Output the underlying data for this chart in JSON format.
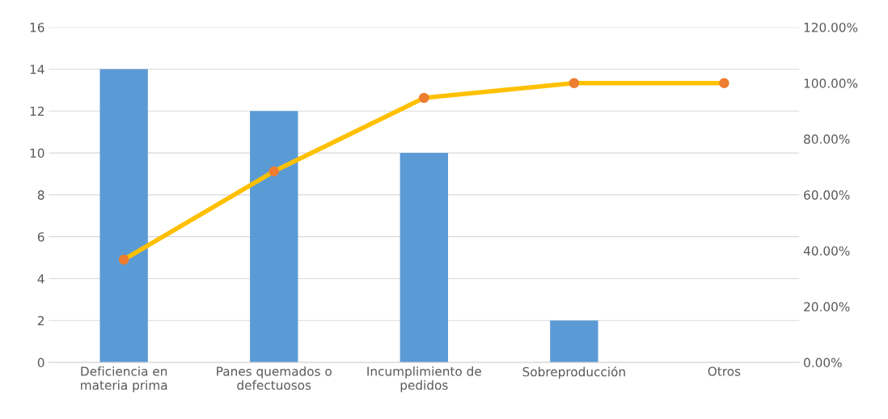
{
  "chart_data": {
    "type": "bar",
    "categories": [
      "Deficiencia en\nmateria prima",
      "Panes quemados o\ndefectuosos",
      "Incumplimiento de\npedidos",
      "Sobreproducción",
      "Otros"
    ],
    "series": [
      {
        "color": "#5b9bd5",
        "values": [
          14,
          12,
          10,
          2,
          0
        ]
      },
      {
        "type": "line",
        "axis": "y2",
        "color": "#ffc000",
        "marker": "circle",
        "values": [
          36.8,
          68.4,
          94.7,
          100,
          100
        ]
      }
    ],
    "ylim": [
      0,
      16
    ],
    "yticks": [
      0,
      2,
      4,
      6,
      8,
      10,
      12,
      14,
      16
    ],
    "y2lim": [
      0,
      120
    ],
    "y2ticks": [
      {
        "value": 0,
        "label": "0.00%"
      },
      {
        "value": 20,
        "label": "20.00%"
      },
      {
        "value": 40,
        "label": "40.00%"
      },
      {
        "value": 60,
        "label": "60.00%"
      },
      {
        "value": 80,
        "label": "80.00%"
      },
      {
        "value": 100,
        "label": "100.00%"
      },
      {
        "value": 120,
        "label": "120.00%"
      }
    ],
    "grid": "y"
  }
}
